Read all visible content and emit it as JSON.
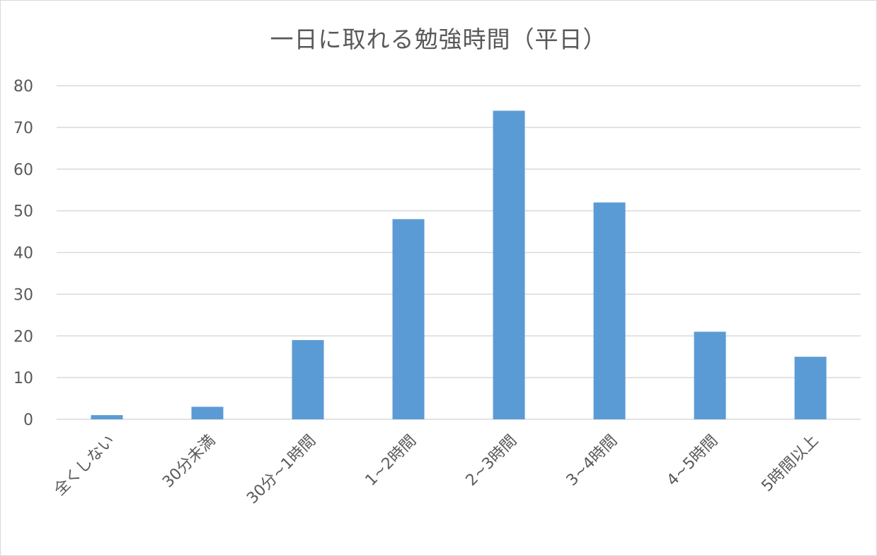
{
  "chart_data": {
    "type": "bar",
    "title": "一日に取れる勉強時間（平日）",
    "categories": [
      "全くしない",
      "30分未満",
      "30分~1時間",
      "1~2時間",
      "2~3時間",
      "3~4時間",
      "4~5時間",
      "5時間以上"
    ],
    "values": [
      1,
      3,
      19,
      48,
      74,
      52,
      21,
      15
    ],
    "ylim": [
      0,
      80
    ],
    "yticks": [
      0,
      10,
      20,
      30,
      40,
      50,
      60,
      70,
      80
    ],
    "grid": true,
    "bar_color": "#5b9bd5",
    "grid_color": "#d9d9d9"
  }
}
